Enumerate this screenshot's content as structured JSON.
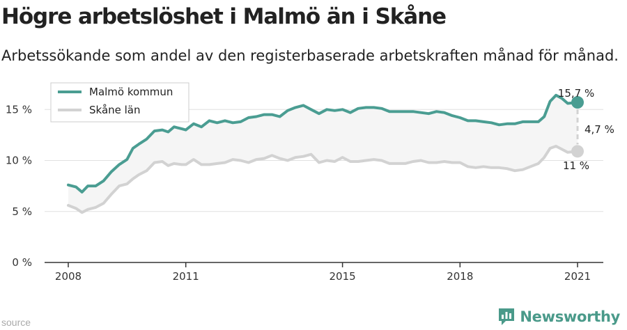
{
  "header": {
    "title": "Högre arbetslöshet i Malmö än i Skåne",
    "subtitle": "Arbetssökande som andel av den registerbaserade arbetskraften månad för månad."
  },
  "footer": {
    "source": "source",
    "brand": "Newsworthy"
  },
  "colors": {
    "malmo": "#4a9d92",
    "skane": "#d2d2d2",
    "band": "#f5f5f5",
    "grid": "#e0e0e0",
    "axis": "#333333"
  },
  "chart_data": {
    "type": "line",
    "title": "Högre arbetslöshet i Malmö än i Skåne",
    "xlabel": "",
    "ylabel": "",
    "xlim": [
      2008,
      2021
    ],
    "ylim": [
      0,
      17
    ],
    "x_ticks": [
      2008,
      2011,
      2015,
      2018,
      2021
    ],
    "x_tick_labels": [
      "2008",
      "2011",
      "2015",
      "2018",
      "2021"
    ],
    "y_ticks": [
      0,
      5,
      10,
      15
    ],
    "y_tick_labels": [
      "0 %",
      "5 %",
      "10 %",
      "15 %"
    ],
    "legend": "top-left",
    "series": [
      {
        "name": "Malmö kommun",
        "color": "#4a9d92",
        "points": [
          [
            2008.0,
            7.6
          ],
          [
            2008.2,
            7.4
          ],
          [
            2008.35,
            6.9
          ],
          [
            2008.5,
            7.5
          ],
          [
            2008.7,
            7.5
          ],
          [
            2008.9,
            8.0
          ],
          [
            2009.1,
            8.9
          ],
          [
            2009.3,
            9.6
          ],
          [
            2009.5,
            10.1
          ],
          [
            2009.65,
            11.2
          ],
          [
            2009.8,
            11.6
          ],
          [
            2010.0,
            12.1
          ],
          [
            2010.2,
            12.9
          ],
          [
            2010.4,
            13.0
          ],
          [
            2010.55,
            12.8
          ],
          [
            2010.7,
            13.3
          ],
          [
            2010.9,
            13.1
          ],
          [
            2011.0,
            13.0
          ],
          [
            2011.2,
            13.6
          ],
          [
            2011.4,
            13.3
          ],
          [
            2011.6,
            13.9
          ],
          [
            2011.8,
            13.7
          ],
          [
            2012.0,
            13.9
          ],
          [
            2012.2,
            13.7
          ],
          [
            2012.4,
            13.8
          ],
          [
            2012.6,
            14.2
          ],
          [
            2012.8,
            14.3
          ],
          [
            2013.0,
            14.5
          ],
          [
            2013.2,
            14.5
          ],
          [
            2013.4,
            14.3
          ],
          [
            2013.6,
            14.9
          ],
          [
            2013.8,
            15.2
          ],
          [
            2014.0,
            15.4
          ],
          [
            2014.2,
            15.0
          ],
          [
            2014.4,
            14.6
          ],
          [
            2014.6,
            15.0
          ],
          [
            2014.8,
            14.9
          ],
          [
            2015.0,
            15.0
          ],
          [
            2015.2,
            14.7
          ],
          [
            2015.4,
            15.1
          ],
          [
            2015.6,
            15.2
          ],
          [
            2015.8,
            15.2
          ],
          [
            2016.0,
            15.1
          ],
          [
            2016.2,
            14.8
          ],
          [
            2016.4,
            14.8
          ],
          [
            2016.6,
            14.8
          ],
          [
            2016.8,
            14.8
          ],
          [
            2017.0,
            14.7
          ],
          [
            2017.2,
            14.6
          ],
          [
            2017.4,
            14.8
          ],
          [
            2017.6,
            14.7
          ],
          [
            2017.8,
            14.4
          ],
          [
            2018.0,
            14.2
          ],
          [
            2018.2,
            13.9
          ],
          [
            2018.4,
            13.9
          ],
          [
            2018.6,
            13.8
          ],
          [
            2018.8,
            13.7
          ],
          [
            2019.0,
            13.5
          ],
          [
            2019.2,
            13.6
          ],
          [
            2019.4,
            13.6
          ],
          [
            2019.6,
            13.8
          ],
          [
            2019.8,
            13.8
          ],
          [
            2020.0,
            13.8
          ],
          [
            2020.15,
            14.3
          ],
          [
            2020.3,
            15.8
          ],
          [
            2020.45,
            16.4
          ],
          [
            2020.6,
            16.1
          ],
          [
            2020.75,
            15.6
          ],
          [
            2021.0,
            15.7
          ]
        ]
      },
      {
        "name": "Skåne län",
        "color": "#d2d2d2",
        "points": [
          [
            2008.0,
            5.6
          ],
          [
            2008.2,
            5.3
          ],
          [
            2008.35,
            4.9
          ],
          [
            2008.5,
            5.2
          ],
          [
            2008.7,
            5.4
          ],
          [
            2008.9,
            5.8
          ],
          [
            2009.1,
            6.7
          ],
          [
            2009.3,
            7.5
          ],
          [
            2009.5,
            7.7
          ],
          [
            2009.65,
            8.2
          ],
          [
            2009.8,
            8.6
          ],
          [
            2010.0,
            9.0
          ],
          [
            2010.2,
            9.8
          ],
          [
            2010.4,
            9.9
          ],
          [
            2010.55,
            9.5
          ],
          [
            2010.7,
            9.7
          ],
          [
            2010.9,
            9.6
          ],
          [
            2011.0,
            9.6
          ],
          [
            2011.2,
            10.1
          ],
          [
            2011.4,
            9.6
          ],
          [
            2011.6,
            9.6
          ],
          [
            2011.8,
            9.7
          ],
          [
            2012.0,
            9.8
          ],
          [
            2012.2,
            10.1
          ],
          [
            2012.4,
            10.0
          ],
          [
            2012.6,
            9.8
          ],
          [
            2012.8,
            10.1
          ],
          [
            2013.0,
            10.2
          ],
          [
            2013.2,
            10.5
          ],
          [
            2013.4,
            10.2
          ],
          [
            2013.6,
            10.0
          ],
          [
            2013.8,
            10.3
          ],
          [
            2014.0,
            10.4
          ],
          [
            2014.2,
            10.6
          ],
          [
            2014.4,
            9.8
          ],
          [
            2014.6,
            10.0
          ],
          [
            2014.8,
            9.9
          ],
          [
            2015.0,
            10.3
          ],
          [
            2015.2,
            9.9
          ],
          [
            2015.4,
            9.9
          ],
          [
            2015.6,
            10.0
          ],
          [
            2015.8,
            10.1
          ],
          [
            2016.0,
            10.0
          ],
          [
            2016.2,
            9.7
          ],
          [
            2016.4,
            9.7
          ],
          [
            2016.6,
            9.7
          ],
          [
            2016.8,
            9.9
          ],
          [
            2017.0,
            10.0
          ],
          [
            2017.2,
            9.8
          ],
          [
            2017.4,
            9.8
          ],
          [
            2017.6,
            9.9
          ],
          [
            2017.8,
            9.8
          ],
          [
            2018.0,
            9.8
          ],
          [
            2018.2,
            9.4
          ],
          [
            2018.4,
            9.3
          ],
          [
            2018.6,
            9.4
          ],
          [
            2018.8,
            9.3
          ],
          [
            2019.0,
            9.3
          ],
          [
            2019.2,
            9.2
          ],
          [
            2019.4,
            9.0
          ],
          [
            2019.6,
            9.1
          ],
          [
            2019.8,
            9.4
          ],
          [
            2020.0,
            9.7
          ],
          [
            2020.15,
            10.3
          ],
          [
            2020.3,
            11.2
          ],
          [
            2020.45,
            11.4
          ],
          [
            2020.6,
            11.1
          ],
          [
            2020.75,
            10.8
          ],
          [
            2021.0,
            10.9
          ]
        ]
      }
    ],
    "annotations": {
      "malmo_last": "15,7 %",
      "skane_last": "11 %",
      "difference": "4,7 %"
    }
  }
}
